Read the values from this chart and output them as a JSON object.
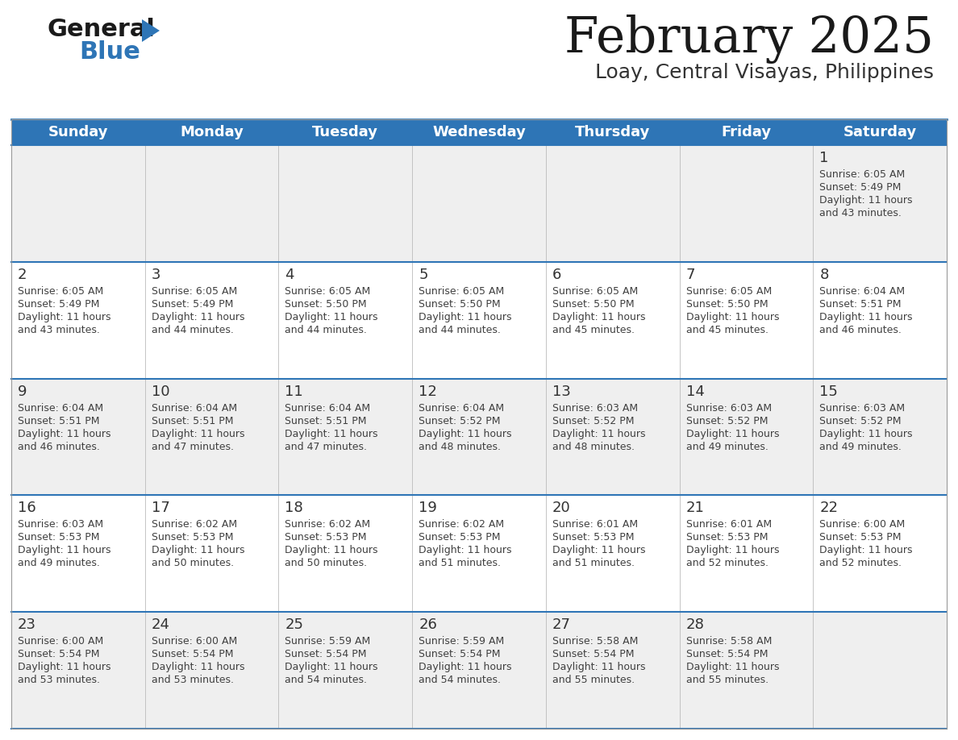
{
  "title": "February 2025",
  "subtitle": "Loay, Central Visayas, Philippines",
  "days_of_week": [
    "Sunday",
    "Monday",
    "Tuesday",
    "Wednesday",
    "Thursday",
    "Friday",
    "Saturday"
  ],
  "header_bg": "#2E75B6",
  "header_text_color": "#FFFFFF",
  "cell_bg_even": "#EFEFEF",
  "cell_bg_odd": "#FFFFFF",
  "separator_color": "#2E75B6",
  "text_color": "#404040",
  "day_num_color": "#333333",
  "calendar_data": [
    [
      null,
      null,
      null,
      null,
      null,
      null,
      {
        "day": 1,
        "sunrise": "6:05 AM",
        "sunset": "5:49 PM",
        "daylight": "11 hours and 43 minutes."
      }
    ],
    [
      {
        "day": 2,
        "sunrise": "6:05 AM",
        "sunset": "5:49 PM",
        "daylight": "11 hours and 43 minutes."
      },
      {
        "day": 3,
        "sunrise": "6:05 AM",
        "sunset": "5:49 PM",
        "daylight": "11 hours and 44 minutes."
      },
      {
        "day": 4,
        "sunrise": "6:05 AM",
        "sunset": "5:50 PM",
        "daylight": "11 hours and 44 minutes."
      },
      {
        "day": 5,
        "sunrise": "6:05 AM",
        "sunset": "5:50 PM",
        "daylight": "11 hours and 44 minutes."
      },
      {
        "day": 6,
        "sunrise": "6:05 AM",
        "sunset": "5:50 PM",
        "daylight": "11 hours and 45 minutes."
      },
      {
        "day": 7,
        "sunrise": "6:05 AM",
        "sunset": "5:50 PM",
        "daylight": "11 hours and 45 minutes."
      },
      {
        "day": 8,
        "sunrise": "6:04 AM",
        "sunset": "5:51 PM",
        "daylight": "11 hours and 46 minutes."
      }
    ],
    [
      {
        "day": 9,
        "sunrise": "6:04 AM",
        "sunset": "5:51 PM",
        "daylight": "11 hours and 46 minutes."
      },
      {
        "day": 10,
        "sunrise": "6:04 AM",
        "sunset": "5:51 PM",
        "daylight": "11 hours and 47 minutes."
      },
      {
        "day": 11,
        "sunrise": "6:04 AM",
        "sunset": "5:51 PM",
        "daylight": "11 hours and 47 minutes."
      },
      {
        "day": 12,
        "sunrise": "6:04 AM",
        "sunset": "5:52 PM",
        "daylight": "11 hours and 48 minutes."
      },
      {
        "day": 13,
        "sunrise": "6:03 AM",
        "sunset": "5:52 PM",
        "daylight": "11 hours and 48 minutes."
      },
      {
        "day": 14,
        "sunrise": "6:03 AM",
        "sunset": "5:52 PM",
        "daylight": "11 hours and 49 minutes."
      },
      {
        "day": 15,
        "sunrise": "6:03 AM",
        "sunset": "5:52 PM",
        "daylight": "11 hours and 49 minutes."
      }
    ],
    [
      {
        "day": 16,
        "sunrise": "6:03 AM",
        "sunset": "5:53 PM",
        "daylight": "11 hours and 49 minutes."
      },
      {
        "day": 17,
        "sunrise": "6:02 AM",
        "sunset": "5:53 PM",
        "daylight": "11 hours and 50 minutes."
      },
      {
        "day": 18,
        "sunrise": "6:02 AM",
        "sunset": "5:53 PM",
        "daylight": "11 hours and 50 minutes."
      },
      {
        "day": 19,
        "sunrise": "6:02 AM",
        "sunset": "5:53 PM",
        "daylight": "11 hours and 51 minutes."
      },
      {
        "day": 20,
        "sunrise": "6:01 AM",
        "sunset": "5:53 PM",
        "daylight": "11 hours and 51 minutes."
      },
      {
        "day": 21,
        "sunrise": "6:01 AM",
        "sunset": "5:53 PM",
        "daylight": "11 hours and 52 minutes."
      },
      {
        "day": 22,
        "sunrise": "6:00 AM",
        "sunset": "5:53 PM",
        "daylight": "11 hours and 52 minutes."
      }
    ],
    [
      {
        "day": 23,
        "sunrise": "6:00 AM",
        "sunset": "5:54 PM",
        "daylight": "11 hours and 53 minutes."
      },
      {
        "day": 24,
        "sunrise": "6:00 AM",
        "sunset": "5:54 PM",
        "daylight": "11 hours and 53 minutes."
      },
      {
        "day": 25,
        "sunrise": "5:59 AM",
        "sunset": "5:54 PM",
        "daylight": "11 hours and 54 minutes."
      },
      {
        "day": 26,
        "sunrise": "5:59 AM",
        "sunset": "5:54 PM",
        "daylight": "11 hours and 54 minutes."
      },
      {
        "day": 27,
        "sunrise": "5:58 AM",
        "sunset": "5:54 PM",
        "daylight": "11 hours and 55 minutes."
      },
      {
        "day": 28,
        "sunrise": "5:58 AM",
        "sunset": "5:54 PM",
        "daylight": "11 hours and 55 minutes."
      },
      null
    ]
  ]
}
